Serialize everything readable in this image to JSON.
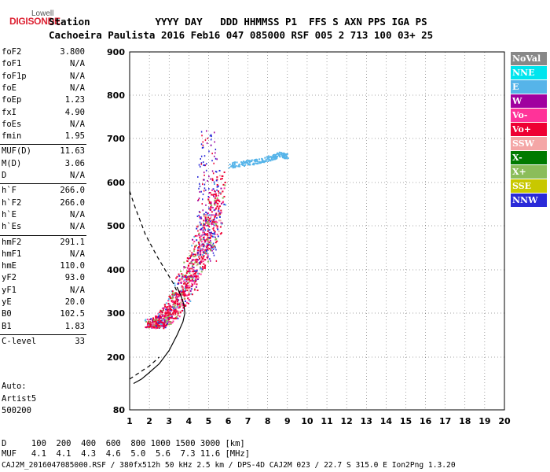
{
  "logo": {
    "line1": "Lowell",
    "line2": "DIGISONDE"
  },
  "header": {
    "row1": "Station           YYYY DAY   DDD HHMMSS P1  FFS S AXN PPS IGA PS",
    "row2": "Cachoeira Paulista 2016 Feb16 047 085000 RSF 005 2 713 100 03+ 25"
  },
  "params": [
    {
      "label": "foF2",
      "value": "3.800"
    },
    {
      "label": "foF1",
      "value": "N/A"
    },
    {
      "label": "foF1p",
      "value": "N/A"
    },
    {
      "label": "foE",
      "value": "N/A"
    },
    {
      "label": "foEp",
      "value": "1.23"
    },
    {
      "label": "fxI",
      "value": "4.90"
    },
    {
      "label": "foEs",
      "value": "N/A"
    },
    {
      "label": "fmin",
      "value": "1.95"
    },
    {
      "label": "MUF(D)",
      "value": "11.63"
    },
    {
      "label": "M(D)",
      "value": "3.06"
    },
    {
      "label": "D",
      "value": "N/A"
    },
    {
      "label": "h`F",
      "value": "266.0"
    },
    {
      "label": "h`F2",
      "value": "266.0"
    },
    {
      "label": "h`E",
      "value": "N/A"
    },
    {
      "label": "h`Es",
      "value": "N/A"
    },
    {
      "label": "hmF2",
      "value": "291.1"
    },
    {
      "label": "hmF1",
      "value": "N/A"
    },
    {
      "label": "hmE",
      "value": "110.0"
    },
    {
      "label": "yF2",
      "value": "93.0"
    },
    {
      "label": "yF1",
      "value": "N/A"
    },
    {
      "label": "yE",
      "value": "20.0"
    },
    {
      "label": "B0",
      "value": "102.5"
    },
    {
      "label": "B1",
      "value": "1.83"
    },
    {
      "label": "C-level",
      "value": "33"
    }
  ],
  "auto": {
    "line1": "Auto:",
    "line2": "Artist5",
    "line3": "500200"
  },
  "legend": [
    {
      "label": "NoVal",
      "color": "#888888"
    },
    {
      "label": "NNE",
      "color": "#00e5ee"
    },
    {
      "label": "E",
      "color": "#56b4e9"
    },
    {
      "label": "W",
      "color": "#a0009f"
    },
    {
      "label": "Vo-",
      "color": "#ff3399"
    },
    {
      "label": "Vo+",
      "color": "#ee0033"
    },
    {
      "label": "SSW",
      "color": "#f4a6a6"
    },
    {
      "label": "X-",
      "color": "#007a00"
    },
    {
      "label": "X+",
      "color": "#8bbd5a"
    },
    {
      "label": "SSE",
      "color": "#c8c800"
    },
    {
      "label": "NNW",
      "color": "#2a2ad8"
    }
  ],
  "footer": {
    "row1": "D     100  200  400  600  800 1000 1500 3000 [km]",
    "row2": "MUF   4.1  4.1  4.3  4.6  5.0  5.6  7.3 11.6 [MHz]",
    "row3": "CAJ2M_2016047085000.RSF / 380fx512h 50 kHz 2.5 km / DPS-4D CAJ2M 023 / 22.7 S 315.0 E Ion2Png 1.3.20"
  },
  "chart_data": {
    "type": "scatter",
    "xlim": [
      1,
      20
    ],
    "ylim": [
      80,
      900
    ],
    "x_ticks": [
      1,
      2,
      3,
      4,
      5,
      6,
      7,
      8,
      9,
      10,
      11,
      12,
      13,
      14,
      15,
      16,
      17,
      18,
      19,
      20
    ],
    "y_ticks": [
      80,
      200,
      300,
      400,
      500,
      600,
      700,
      800,
      900
    ],
    "grid": true,
    "legend_position": "right",
    "trace_F2": {
      "x": [
        2.0,
        2.3,
        2.6,
        2.9,
        3.2,
        3.5,
        3.8,
        4.1,
        4.4,
        4.7,
        5.0,
        5.3,
        5.6
      ],
      "y": [
        272,
        272,
        275,
        285,
        300,
        320,
        345,
        370,
        400,
        430,
        460,
        500,
        540
      ]
    },
    "trace_E": {
      "x": [
        6.0,
        6.8,
        7.5,
        8.2,
        8.6,
        9.0
      ],
      "y": [
        640,
        645,
        650,
        658,
        665,
        660
      ]
    },
    "profile_solid": {
      "x": [
        1.2,
        1.6,
        2.0,
        2.5,
        3.0,
        3.4,
        3.7,
        3.8,
        3.75,
        3.6,
        3.4
      ],
      "y": [
        140,
        150,
        165,
        185,
        215,
        250,
        280,
        300,
        320,
        340,
        360
      ]
    },
    "profile_dashed": {
      "x": [
        1.0,
        1.3,
        1.8,
        2.4,
        2.8,
        3.2,
        3.4
      ],
      "y": [
        580,
        540,
        480,
        430,
        400,
        370,
        350
      ]
    },
    "profile_dashed_low": {
      "x": [
        1.0,
        1.5,
        2.0,
        2.5
      ],
      "y": [
        150,
        165,
        180,
        200
      ]
    }
  }
}
